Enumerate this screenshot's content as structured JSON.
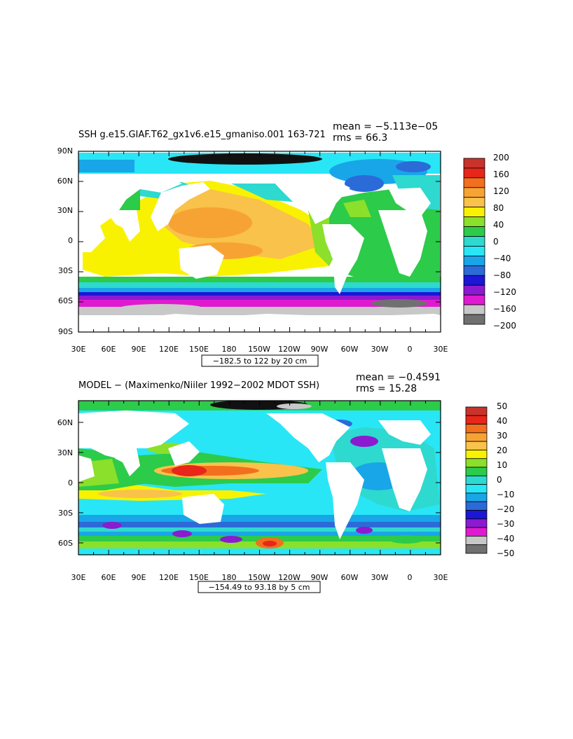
{
  "panels": [
    {
      "title": "SSH  g.e15.GIAF.T62_gx1v6.e15_gmaniso.001 163-721",
      "stats_mean": "mean = −5.113e−05",
      "stats_rms": "rms = 66.3",
      "contour_info": "−182.5 to 122 by 20 cm",
      "lat_labels": [
        "90N",
        "60N",
        "30N",
        "0",
        "30S",
        "60S",
        "90S"
      ],
      "lon_labels": [
        "30E",
        "60E",
        "90E",
        "120E",
        "150E",
        "180",
        "150W",
        "120W",
        "90W",
        "60W",
        "30W",
        "0",
        "30E"
      ],
      "colorbar_labels": [
        "200",
        "160",
        "120",
        "80",
        "40",
        "0",
        "−40",
        "−80",
        "−120",
        "−160",
        "−200"
      ],
      "colorbar_colors": [
        "#c8332b",
        "#e8261a",
        "#f26f1e",
        "#f7a334",
        "#f9c24a",
        "#f8f200",
        "#8ae02a",
        "#2ccb4a",
        "#2ed9cf",
        "#28e6f6",
        "#18a6e8",
        "#2b6bd8",
        "#1c16d6",
        "#8c1ad0",
        "#e01ad0",
        "#c8c8c8",
        "#707070"
      ]
    },
    {
      "title": "MODEL − (Maximenko/Niiler 1992−2002 MDOT SSH)",
      "stats_mean": "mean = −0.4591",
      "stats_rms": "rms = 15.28",
      "contour_info": "−154.49 to 93.18 by 5 cm",
      "lat_labels": [
        "60N",
        "30N",
        "0",
        "30S",
        "60S"
      ],
      "lon_labels": [
        "30E",
        "60E",
        "90E",
        "120E",
        "150E",
        "180",
        "150W",
        "120W",
        "90W",
        "60W",
        "30W",
        "0",
        "30E"
      ],
      "colorbar_labels": [
        "50",
        "40",
        "30",
        "20",
        "10",
        "0",
        "−10",
        "−20",
        "−30",
        "−40",
        "−50"
      ],
      "colorbar_colors": [
        "#c8332b",
        "#e8261a",
        "#f26f1e",
        "#f7a334",
        "#f9c24a",
        "#f8f200",
        "#8ae02a",
        "#2ccb4a",
        "#2ed9cf",
        "#28e6f6",
        "#18a6e8",
        "#2b6bd8",
        "#1c16d6",
        "#8c1ad0",
        "#e01ad0",
        "#c8c8c8",
        "#707070"
      ]
    }
  ]
}
